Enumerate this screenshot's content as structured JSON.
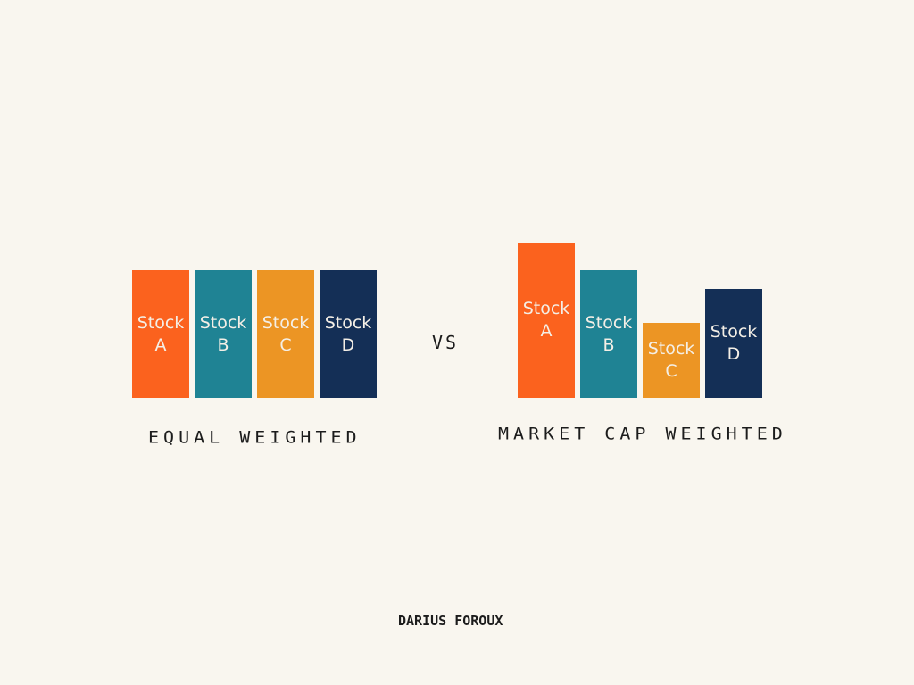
{
  "colors": {
    "A": "#fb621e",
    "B": "#1f8394",
    "C": "#ec9524",
    "D": "#142f56",
    "background": "#f9f6ef"
  },
  "vs_label": "VS",
  "author": "DARIUS FOROUX",
  "chart_data": [
    {
      "type": "bar",
      "title": "EQUAL WEIGHTED",
      "categories": [
        "Stock A",
        "Stock B",
        "Stock C",
        "Stock D"
      ],
      "bars": [
        {
          "line1": "Stock",
          "line2": "A",
          "value": 1.0
        },
        {
          "line1": "Stock",
          "line2": "B",
          "value": 1.0
        },
        {
          "line1": "Stock",
          "line2": "C",
          "value": 1.0
        },
        {
          "line1": "Stock",
          "line2": "D",
          "value": 1.0
        }
      ]
    },
    {
      "type": "bar",
      "title": "MARKET CAP WEIGHTED",
      "categories": [
        "Stock A",
        "Stock B",
        "Stock C",
        "Stock D"
      ],
      "bars": [
        {
          "line1": "Stock",
          "line2": "A",
          "value": 1.22
        },
        {
          "line1": "Stock",
          "line2": "B",
          "value": 1.0
        },
        {
          "line1": "Stock",
          "line2": "C",
          "value": 0.59
        },
        {
          "line1": "Stock",
          "line2": "D",
          "value": 0.85
        }
      ]
    }
  ]
}
